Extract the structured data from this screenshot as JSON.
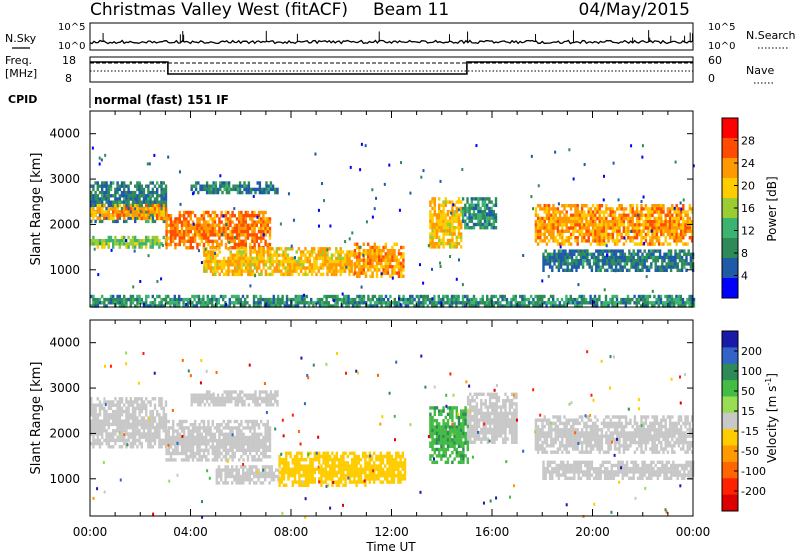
{
  "header": {
    "station": "Christmas Valley West (fitACF)",
    "beam": "Beam 11",
    "date": "04/May/2015"
  },
  "aux_panels": {
    "nsky_label": "N.Sky",
    "nsearch_label": "N.Search",
    "noise_ticks": [
      "10^5",
      "10^0"
    ],
    "freq_label_1": "Freq.",
    "freq_label_2": "[MHz]",
    "freq_ticks": [
      "18",
      "8"
    ],
    "nave_label": "Nave",
    "nave_ticks": [
      "60",
      "0"
    ],
    "cpid_label": "CPID",
    "cpid_text": "normal (fast) 151 IF",
    "freq_series": {
      "x_hours": [
        0,
        3.1,
        3.1,
        15.0,
        15.0,
        24
      ],
      "y_level": [
        "high",
        "high",
        "low",
        "low",
        "high",
        "high"
      ]
    }
  },
  "axes": {
    "xlabel": "Time UT",
    "x_ticks": [
      "00:00",
      "04:00",
      "08:00",
      "12:00",
      "16:00",
      "20:00",
      "00:00"
    ],
    "x_tick_hours": [
      0,
      4,
      8,
      12,
      16,
      20,
      24
    ],
    "xlim_hours": [
      0,
      24
    ],
    "ylabel": "Slant Range [km]",
    "y_ticks": [
      "4000",
      "3000",
      "2000",
      "1000"
    ],
    "y_tick_values": [
      4000,
      3000,
      2000,
      1000
    ],
    "ylim_km": [
      180,
      4500
    ]
  },
  "power_colorbar": {
    "label": "Power [dB]",
    "ticks": [
      "28",
      "24",
      "20",
      "16",
      "12",
      "8",
      "4"
    ],
    "colors": [
      "#ff0000",
      "#ff4c00",
      "#ff9900",
      "#ffcc00",
      "#9acd32",
      "#3cb371",
      "#2e8b57",
      "#1e5aa8",
      "#0000ff"
    ]
  },
  "velocity_colorbar": {
    "label": "Velocity [m s",
    "label_sup": "-1",
    "label_end": "]",
    "ticks": [
      "200",
      "100",
      "50",
      "15",
      "-15",
      "-50",
      "-100",
      "-200"
    ],
    "colors": [
      "#1a1aa8",
      "#3264c8",
      "#2e8b57",
      "#44bb44",
      "#99dd55",
      "#c8c8c8",
      "#ffcc00",
      "#ff9900",
      "#ff6600",
      "#ff2200",
      "#dd0000"
    ]
  },
  "chart_data": [
    {
      "type": "heatmap",
      "title": "",
      "quantity": "Power [dB]",
      "xlabel": "Time UT",
      "ylabel": "Slant Range [km]",
      "xlim": [
        0,
        24
      ],
      "ylim": [
        180,
        4500
      ],
      "scatter_bands": [
        {
          "t0": 0.0,
          "t1": 3.0,
          "r_top": 2950,
          "r_bot": 2100,
          "level": 6
        },
        {
          "t0": 0.0,
          "t1": 3.0,
          "r_top": 2450,
          "r_bot": 2150,
          "level": 22
        },
        {
          "t0": 0.0,
          "t1": 3.0,
          "r_top": 1750,
          "r_bot": 1500,
          "level": 14
        },
        {
          "t0": 3.0,
          "t1": 7.2,
          "r_top": 2300,
          "r_bot": 1500,
          "level": 24
        },
        {
          "t0": 4.0,
          "t1": 7.5,
          "r_top": 2950,
          "r_bot": 2700,
          "level": 6
        },
        {
          "t0": 4.5,
          "t1": 10.5,
          "r_top": 1500,
          "r_bot": 900,
          "level": 20
        },
        {
          "t0": 10.5,
          "t1": 12.5,
          "r_top": 1600,
          "r_bot": 850,
          "level": 22
        },
        {
          "t0": 13.5,
          "t1": 14.8,
          "r_top": 2600,
          "r_bot": 1500,
          "level": 20
        },
        {
          "t0": 14.8,
          "t1": 16.2,
          "r_top": 2600,
          "r_bot": 1900,
          "level": 8
        },
        {
          "t0": 17.7,
          "t1": 24.0,
          "r_top": 2450,
          "r_bot": 1600,
          "level": 22
        },
        {
          "t0": 18.0,
          "t1": 24.0,
          "r_top": 1450,
          "r_bot": 1000,
          "level": 6
        },
        {
          "t0": 0.0,
          "t1": 24.0,
          "r_top": 450,
          "r_bot": 200,
          "level": 8
        }
      ]
    },
    {
      "type": "heatmap",
      "title": "",
      "quantity": "Velocity [m s-1]",
      "xlabel": "Time UT",
      "ylabel": "Slant Range [km]",
      "xlim": [
        0,
        24
      ],
      "ylim": [
        180,
        4500
      ],
      "scatter_bands": [
        {
          "t0": 0.0,
          "t1": 3.0,
          "r_top": 2800,
          "r_bot": 1700,
          "velocity": 0
        },
        {
          "t0": 3.0,
          "t1": 7.2,
          "r_top": 2300,
          "r_bot": 1450,
          "velocity": 0
        },
        {
          "t0": 4.0,
          "t1": 7.5,
          "r_top": 2950,
          "r_bot": 2650,
          "velocity": 0
        },
        {
          "t0": 5.0,
          "t1": 7.5,
          "r_top": 1300,
          "r_bot": 900,
          "velocity": 0
        },
        {
          "t0": 7.5,
          "t1": 11.0,
          "r_top": 1600,
          "r_bot": 850,
          "velocity": -60
        },
        {
          "t0": 11.0,
          "t1": 12.5,
          "r_top": 1600,
          "r_bot": 900,
          "velocity": -40
        },
        {
          "t0": 13.5,
          "t1": 15.0,
          "r_top": 2600,
          "r_bot": 1400,
          "velocity": 30
        },
        {
          "t0": 15.0,
          "t1": 17.0,
          "r_top": 2900,
          "r_bot": 1800,
          "velocity": 0
        },
        {
          "t0": 17.7,
          "t1": 24.0,
          "r_top": 2400,
          "r_bot": 1600,
          "velocity": 0
        },
        {
          "t0": 18.0,
          "t1": 24.0,
          "r_top": 1400,
          "r_bot": 1000,
          "velocity": 0
        }
      ]
    }
  ]
}
